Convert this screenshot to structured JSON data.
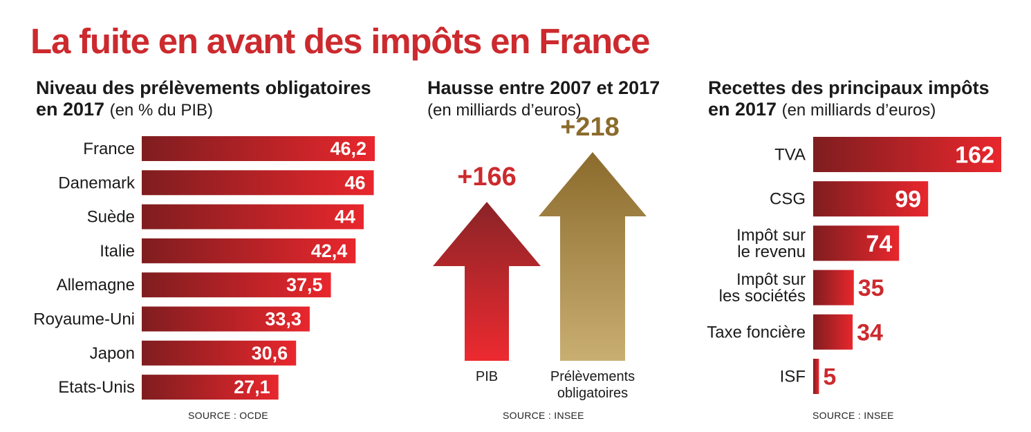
{
  "title": "La fuite en avant des impôts en France",
  "colors": {
    "title": "#cc2a2e",
    "bar_dark": "#7f1d1f",
    "bar_light": "#e8272d",
    "arrow_gold_dark": "#8b6b2c",
    "arrow_gold_light": "#c9ae72",
    "arrow_red_dark": "#8a2427",
    "arrow_red_light": "#ec2a30"
  },
  "chart_data": [
    {
      "type": "bar",
      "orientation": "horizontal",
      "title_bold_line1": "Niveau des prélèvements obligatoires",
      "title_bold_line2": "en 2017",
      "title_unit": "(en % du PIB)",
      "categories": [
        "France",
        "Danemark",
        "Suède",
        "Italie",
        "Allemagne",
        "Royaume-Uni",
        "Japon",
        "Etats-Unis"
      ],
      "values": [
        46.2,
        46,
        44,
        42.4,
        37.5,
        33.3,
        30.6,
        27.1
      ],
      "value_labels": [
        "46,2",
        "46",
        "44",
        "42,4",
        "37,5",
        "33,3",
        "30,6",
        "27,1"
      ],
      "source": "SOURCE : OCDE"
    },
    {
      "type": "bar",
      "style": "arrows",
      "title_bold_line1": "Hausse entre 2007 et 2017",
      "title_unit": "(en milliards d’euros)",
      "categories": [
        "PIB",
        "Prélèvements obligatoires"
      ],
      "category_lines": [
        [
          "PIB"
        ],
        [
          "Prélèvements",
          "obligatoires"
        ]
      ],
      "values": [
        166,
        218
      ],
      "value_labels": [
        "+166",
        "+218"
      ],
      "source": "SOURCE : INSEE"
    },
    {
      "type": "bar",
      "orientation": "horizontal",
      "title_bold_line1": "Recettes des principaux impôts",
      "title_bold_line2": "en 2017",
      "title_unit": "(en milliards d’euros)",
      "categories": [
        "TVA",
        "CSG",
        "Impôt sur le revenu",
        "Impôt sur les sociétés",
        "Taxe foncière",
        "ISF"
      ],
      "category_lines": [
        [
          "TVA"
        ],
        [
          "CSG"
        ],
        [
          "Impôt sur",
          "le revenu"
        ],
        [
          "Impôt sur",
          "les sociétés"
        ],
        [
          "Taxe foncière"
        ],
        [
          "ISF"
        ]
      ],
      "values": [
        162,
        99,
        74,
        35,
        34,
        5
      ],
      "value_labels": [
        "162",
        "99",
        "74",
        "35",
        "34",
        "5"
      ],
      "source": "SOURCE : INSEE"
    }
  ]
}
